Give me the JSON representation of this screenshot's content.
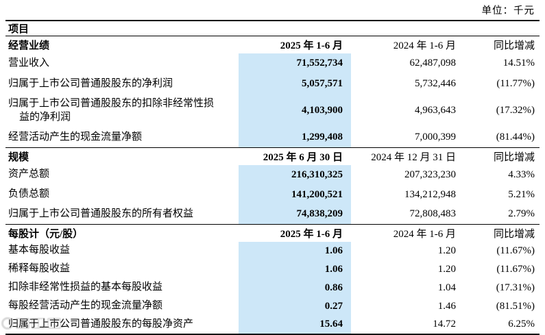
{
  "unit_label": "单位：千元",
  "colors": {
    "highlight": "#cde7f8",
    "text": "#000000",
    "rule": "#000000"
  },
  "table": {
    "items_header": "项目",
    "sections": [
      {
        "title": "经营业绩",
        "col_headers": {
          "current": "2025 年 1-6 月",
          "previous": "2024 年 1-6 月",
          "yoy": "同比增减"
        },
        "rows": [
          {
            "label": "营业收入",
            "current": "71,552,734",
            "previous": "62,487,098",
            "yoy": "14.51%"
          },
          {
            "label": "归属于上市公司普通股股东的净利润",
            "current": "5,057,571",
            "previous": "5,732,446",
            "yoy": "(11.77%)"
          },
          {
            "label": "归属于上市公司普通股股东的扣除非经常性损益的净利润",
            "current": "4,103,900",
            "previous": "4,963,643",
            "yoy": "(17.32%)"
          },
          {
            "label": "经营活动产生的现金流量净额",
            "current": "1,299,408",
            "previous": "7,000,399",
            "yoy": "(81.44%)"
          }
        ]
      },
      {
        "title": "规模",
        "col_headers": {
          "current": "2025 年 6 月 30 日",
          "previous": "2024 年 12 月 31 日",
          "yoy": "同比增减"
        },
        "rows": [
          {
            "label": "资产总额",
            "current": "216,310,325",
            "previous": "207,323,230",
            "yoy": "4.33%"
          },
          {
            "label": "负债总额",
            "current": "141,200,521",
            "previous": "134,212,948",
            "yoy": "5.21%"
          },
          {
            "label": "归属于上市公司普通股股东的所有者权益",
            "current": "74,838,209",
            "previous": "72,808,483",
            "yoy": "2.79%"
          }
        ]
      },
      {
        "title": "每股计（元/股）",
        "col_headers": {
          "current": "2025 年 1-6 月",
          "previous": "2024 年 1-6 月",
          "yoy": "同比增减"
        },
        "rows": [
          {
            "label": "基本每股收益",
            "current": "1.06",
            "previous": "1.20",
            "yoy": "(11.67%)"
          },
          {
            "label": "稀释每股收益",
            "current": "1.06",
            "previous": "1.20",
            "yoy": "(11.67%)"
          },
          {
            "label": "扣除非经常性损益的基本每股收益",
            "current": "0.86",
            "previous": "1.04",
            "yoy": "(17.31%)"
          },
          {
            "label": "每股经营活动产生的现金流量净额",
            "current": "0.27",
            "previous": "1.46",
            "yoy": "(81.51%)"
          },
          {
            "label": "归属于上市公司普通股股东的每股净资产",
            "current": "15.64",
            "previous": "14.72",
            "yoy": "6.25%"
          }
        ]
      }
    ]
  }
}
